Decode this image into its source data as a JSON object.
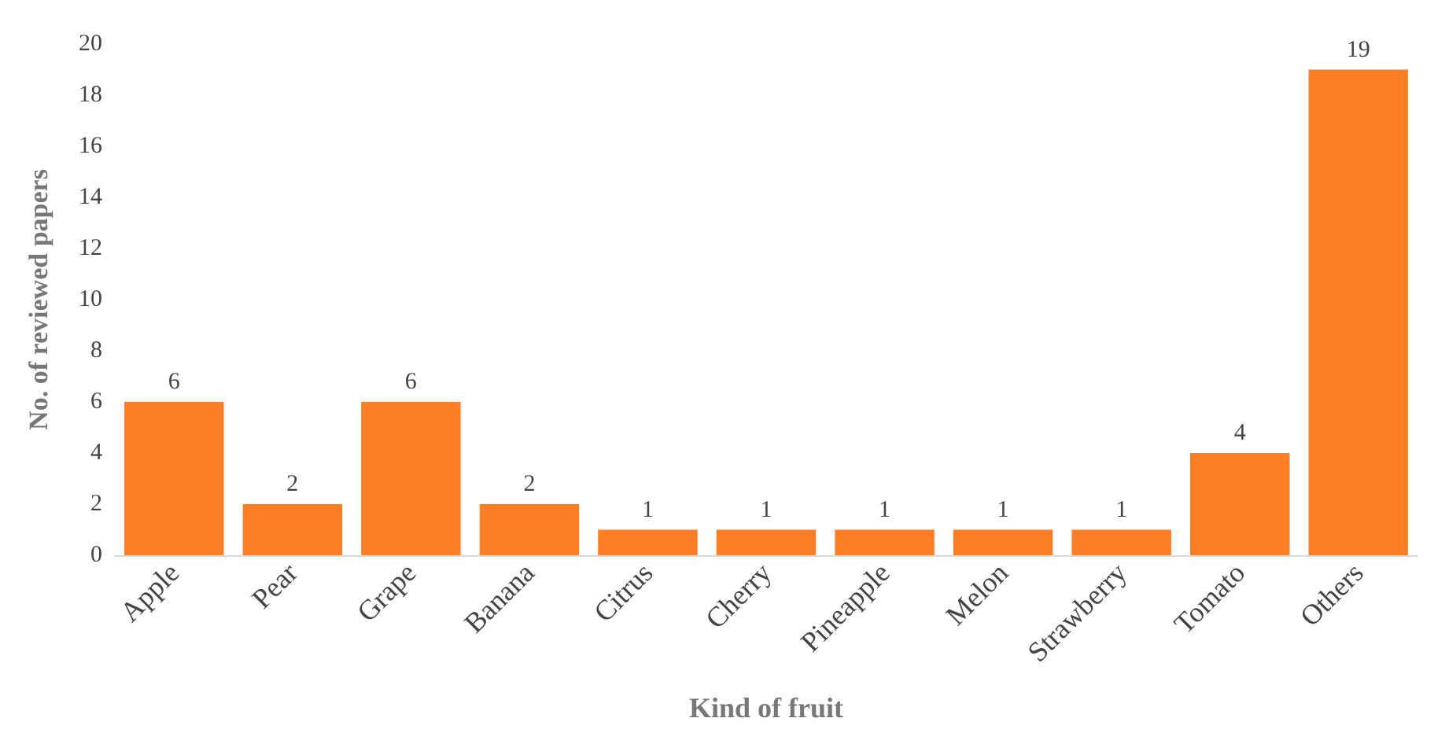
{
  "chart_data": {
    "type": "bar",
    "xlabel": "Kind of fruit",
    "ylabel": "No. of reviewed papers",
    "categories": [
      "Apple",
      "Pear",
      "Grape",
      "Banana",
      "Citrus",
      "Cherry",
      "Pineapple",
      "Melon",
      "Strawberry",
      "Tomato",
      "Others"
    ],
    "values": [
      6,
      2,
      6,
      2,
      1,
      1,
      1,
      1,
      1,
      4,
      19
    ],
    "color": "#fd7f25",
    "ylim": [
      0,
      20
    ],
    "yticks": [
      0,
      2,
      4,
      6,
      8,
      10,
      12,
      14,
      16,
      18,
      20
    ],
    "grid": false,
    "data_labels": true
  }
}
